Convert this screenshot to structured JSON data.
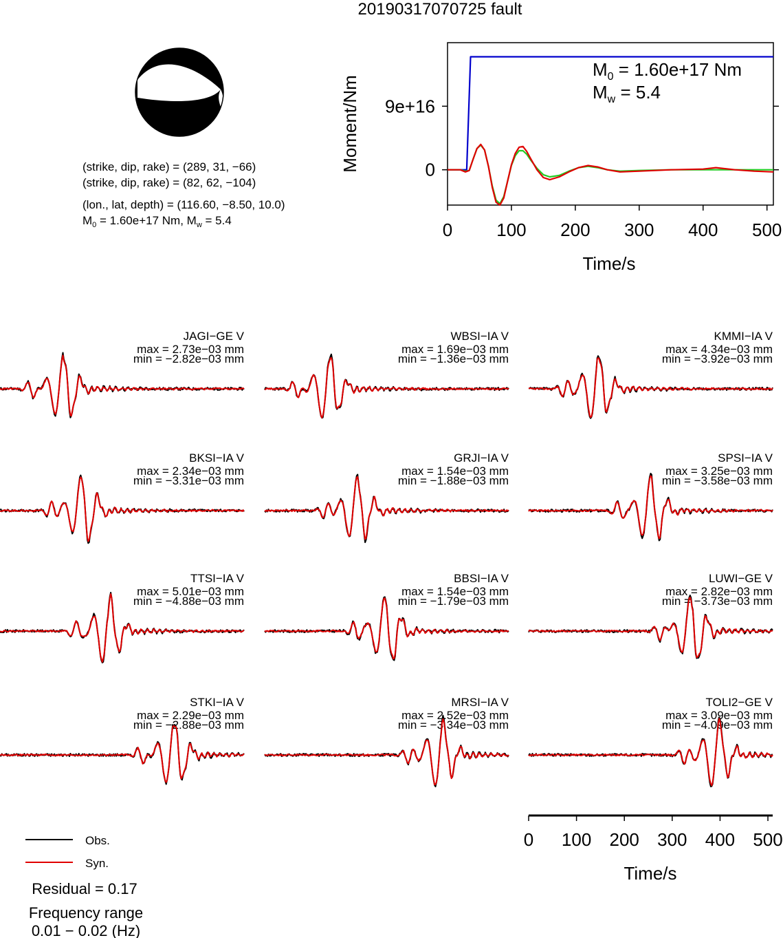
{
  "title": "20190317070725 fault",
  "beachball": {
    "planes": [
      {
        "label_prefix": "(strike, dip, rake) = ",
        "values": "(289, 31, −66)",
        "strike": 289,
        "dip": 31,
        "rake": -66
      },
      {
        "label_prefix": "(strike, dip, rake) = ",
        "values": "(82, 62, −104)",
        "strike": 82,
        "dip": 62,
        "rake": -104
      }
    ],
    "location_text": "(lon., lat, depth) = (116.60, −8.50, 10.0)",
    "m0_prefix": "M",
    "m0_sub": "0",
    "m0_rest": " = 1.60e+17 Nm, M",
    "mw_sub": "w",
    "mw_rest": " = 5.4"
  },
  "colors": {
    "obs": "#000000",
    "syn": "#e00000",
    "moment": "#0000cc",
    "stf_green": "#22cc22"
  },
  "chart_data": [
    {
      "type": "line",
      "ylabel": "Moment/Nm",
      "xlabel": "Time/s",
      "xlim": [
        0,
        510
      ],
      "ylim": [
        -50000000000000000,
        180000000000000000
      ],
      "xticks": [
        0,
        100,
        200,
        300,
        400,
        500
      ],
      "xtick_labels": [
        "0",
        "100",
        "200",
        "300",
        "400",
        "500"
      ],
      "yticks": [
        0,
        90000000000000000
      ],
      "ytick_labels": [
        "0",
        "9e+16"
      ],
      "annotation_m0": {
        "prefix": "M",
        "sub": "0",
        "rest": " = 1.60e+17 Nm"
      },
      "annotation_mw": {
        "prefix": "M",
        "sub": "w",
        "rest": " = 5.4"
      },
      "series": [
        {
          "role": "cumulative moment",
          "color": "#0000cc",
          "x": [
            0,
            30,
            36,
            510
          ],
          "y": [
            0,
            0,
            160000000000000000,
            160000000000000000
          ]
        },
        {
          "role": "moment rate (green)",
          "color": "#22cc22",
          "x": [
            0,
            20,
            28,
            34,
            40,
            46,
            52,
            58,
            64,
            70,
            76,
            82,
            88,
            94,
            100,
            106,
            112,
            118,
            124,
            130,
            140,
            150,
            160,
            175,
            190,
            205,
            220,
            235,
            250,
            270,
            300,
            350,
            400,
            450,
            510
          ],
          "y": [
            0,
            0,
            -2000000000000000.0,
            -1000000000000000.0,
            1.5e+16,
            3e+16,
            3.5e+16,
            2.8e+16,
            5000000000000000.0,
            -2.3e+16,
            -4.3e+16,
            -4.8e+16,
            -3.8e+16,
            -1.6e+16,
            6000000000000000.0,
            2e+16,
            2.7e+16,
            2.7e+16,
            2.2e+16,
            1.4e+16,
            2000000000000000.0,
            -7000000000000000.0,
            -1e+16,
            -8000000000000000.0,
            -2000000000000000.0,
            3000000000000000.0,
            5000000000000000.0,
            3000000000000000.0,
            0,
            -2000000000000000.0,
            -1000000000000000.0,
            0,
            0,
            0,
            0
          ]
        },
        {
          "role": "moment rate (red)",
          "color": "#e00000",
          "x": [
            0,
            20,
            28,
            34,
            40,
            46,
            52,
            58,
            64,
            70,
            76,
            82,
            88,
            94,
            100,
            106,
            112,
            118,
            124,
            130,
            140,
            150,
            160,
            175,
            190,
            205,
            220,
            235,
            250,
            270,
            300,
            350,
            400,
            420,
            450,
            480,
            510
          ],
          "y": [
            0,
            0,
            -3000000000000000.0,
            -1000000000000000.0,
            1.5e+16,
            3e+16,
            3.6e+16,
            2.8e+16,
            5000000000000000.0,
            -2.5e+16,
            -4.6e+16,
            -5e+16,
            -4e+16,
            -1.6e+16,
            7000000000000000.0,
            2.3e+16,
            3.2e+16,
            3.3e+16,
            2.6e+16,
            1.6e+16,
            0,
            -1.1e+16,
            -1.4e+16,
            -1e+16,
            -3000000000000000.0,
            3000000000000000.0,
            6000000000000000.0,
            4000000000000000.0,
            0,
            -3000000000000000.0,
            -2000000000000000.0,
            0,
            1000000000000000.0,
            3000000000000000.0,
            0,
            -2000000000000000.0,
            -3000000000000000.0
          ]
        }
      ]
    }
  ],
  "stations": [
    {
      "name": "JAGI−GE V",
      "max": "max = 2.73e−03 mm",
      "min": "min = −2.82e−03 mm",
      "seed": 11,
      "peak": 0.26
    },
    {
      "name": "WBSI−IA V",
      "max": "max = 1.69e−03 mm",
      "min": "min = −1.36e−03 mm",
      "seed": 23,
      "peak": 0.26
    },
    {
      "name": "KMMI−IA V",
      "max": "max = 4.34e−03 mm",
      "min": "min = −3.92e−03 mm",
      "seed": 37,
      "peak": 0.28
    },
    {
      "name": "BKSI−IA V",
      "max": "max = 2.34e−03 mm",
      "min": "min = −3.31e−03 mm",
      "seed": 41,
      "peak": 0.34
    },
    {
      "name": "GRJI−IA V",
      "max": "max = 1.54e−03 mm",
      "min": "min = −1.88e−03 mm",
      "seed": 53,
      "peak": 0.38
    },
    {
      "name": "SPSI−IA V",
      "max": "max = 3.25e−03 mm",
      "min": "min = −3.58e−03 mm",
      "seed": 67,
      "peak": 0.5
    },
    {
      "name": "TTSI−IA V",
      "max": "max = 5.01e−03 mm",
      "min": "min = −4.88e−03 mm",
      "seed": 71,
      "peak": 0.44
    },
    {
      "name": "BBSI−IA V",
      "max": "max = 1.54e−03 mm",
      "min": "min = −1.79e−03 mm",
      "seed": 83,
      "peak": 0.5
    },
    {
      "name": "LUWI−GE V",
      "max": "max = 2.82e−03 mm",
      "min": "min = −3.73e−03 mm",
      "seed": 97,
      "peak": 0.67
    },
    {
      "name": "STKI−IA V",
      "max": "max = 2.29e−03 mm",
      "min": "min = −2.88e−03 mm",
      "seed": 101,
      "peak": 0.71
    },
    {
      "name": "MRSI−IA V",
      "max": "max = 2.52e−03 mm",
      "min": "min = −3.34e−03 mm",
      "seed": 113,
      "peak": 0.72
    },
    {
      "name": "TOLI2−GE V",
      "max": "max = 3.09e−03 mm",
      "min": "min = −4.09e−03 mm",
      "seed": 127,
      "peak": 0.77
    }
  ],
  "waveform_axis": {
    "xlabel": "Time/s",
    "xlim": [
      0,
      510
    ],
    "xticks": [
      0,
      100,
      200,
      300,
      400,
      500
    ],
    "xtick_labels": [
      "0",
      "100",
      "200",
      "300",
      "400",
      "500"
    ]
  },
  "legend": {
    "obs": "Obs.",
    "syn": "Syn."
  },
  "residual": "Residual = 0.17",
  "frequency_label": "Frequency range",
  "frequency_values": "0.01 − 0.02 (Hz)"
}
